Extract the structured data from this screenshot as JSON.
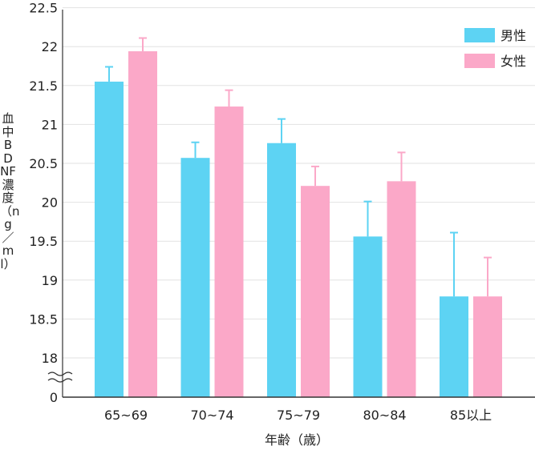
{
  "chart_data": {
    "type": "bar",
    "categories": [
      "65~69",
      "70~74",
      "75~79",
      "80~84",
      "85以上"
    ],
    "series": [
      {
        "name": "男性",
        "color": "#5dd3f3",
        "values": [
          21.55,
          20.57,
          20.76,
          19.56,
          18.79
        ],
        "errors": [
          0.19,
          0.2,
          0.31,
          0.45,
          0.82
        ]
      },
      {
        "name": "女性",
        "color": "#fba8c8",
        "values": [
          21.94,
          21.23,
          20.21,
          20.27,
          18.79
        ],
        "errors": [
          0.17,
          0.21,
          0.25,
          0.37,
          0.5
        ]
      }
    ],
    "yticks": [
      "22.5",
      "22",
      "21.5",
      "21",
      "20.5",
      "20",
      "19.5",
      "19",
      "18.5",
      "18",
      "0"
    ],
    "ylim": [
      17.8,
      22.5
    ],
    "axis_break": true,
    "ylabel": "血中BDNF濃度（ng／ml）",
    "xlabel": "年齢（歳）",
    "legend_position": "top-right",
    "grid": true
  }
}
